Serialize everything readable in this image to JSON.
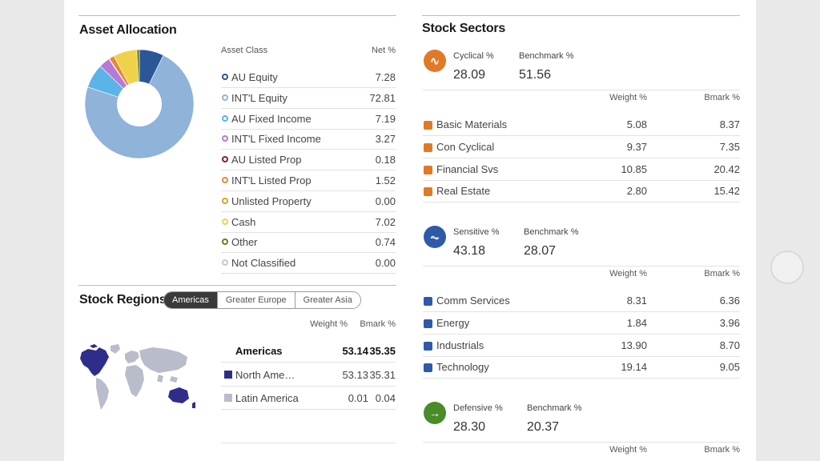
{
  "asset_allocation": {
    "title": "Asset Allocation",
    "col_class": "Asset Class",
    "col_net": "Net %",
    "rows": [
      {
        "label": "AU Equity",
        "value": "7.28",
        "color": "#2b5797"
      },
      {
        "label": "INT'L Equity",
        "value": "72.81",
        "color": "#8fb3d9"
      },
      {
        "label": "AU Fixed Income",
        "value": "7.19",
        "color": "#5ab4e8"
      },
      {
        "label": "INT'L Fixed Income",
        "value": "3.27",
        "color": "#b47ad6"
      },
      {
        "label": "AU Listed Prop",
        "value": "0.18",
        "color": "#8b1a3a"
      },
      {
        "label": "INT'L Listed Prop",
        "value": "1.52",
        "color": "#e08a3c"
      },
      {
        "label": "Unlisted Property",
        "value": "0.00",
        "color": "#d6a61e"
      },
      {
        "label": "Cash",
        "value": "7.02",
        "color": "#f0d24a"
      },
      {
        "label": "Other",
        "value": "0.74",
        "color": "#6a7a2a"
      },
      {
        "label": "Not Classified",
        "value": "0.00",
        "color": "#c8c8c8"
      }
    ]
  },
  "stock_regions": {
    "title": "Stock Regions",
    "tabs": [
      "Americas",
      "Greater Europe",
      "Greater Asia"
    ],
    "active_tab": "Americas",
    "col_weight": "Weight %",
    "col_bmark": "Bmark %",
    "rows": [
      {
        "label": "Americas",
        "weight": "53.14",
        "bmark": "35.35",
        "total": true
      },
      {
        "label": "North Ame…",
        "weight": "53.13",
        "bmark": "35.31",
        "color": "#2e2e8a"
      },
      {
        "label": "Latin America",
        "weight": "0.01",
        "bmark": "0.04",
        "color": "#b8bccb"
      }
    ]
  },
  "stock_sectors": {
    "title": "Stock Sectors",
    "col_weight": "Weight %",
    "col_bmark": "Bmark %",
    "groups": [
      {
        "name": "Cyclical %",
        "value": "28.09",
        "bench_label": "Benchmark %",
        "bench": "51.56",
        "color": "#e07a27",
        "icon": "cyclical-icon",
        "rows": [
          {
            "label": "Basic Materials",
            "weight": "5.08",
            "bmark": "8.37",
            "icon": "basic-materials-icon"
          },
          {
            "label": "Con Cyclical",
            "weight": "9.37",
            "bmark": "7.35",
            "icon": "consumer-cyclical-icon"
          },
          {
            "label": "Financial Svs",
            "weight": "10.85",
            "bmark": "20.42",
            "icon": "financial-services-icon"
          },
          {
            "label": "Real Estate",
            "weight": "2.80",
            "bmark": "15.42",
            "icon": "real-estate-icon"
          }
        ]
      },
      {
        "name": "Sensitive %",
        "value": "43.18",
        "bench_label": "Benchmark %",
        "bench": "28.07",
        "color": "#2f5aa8",
        "icon": "sensitive-icon",
        "rows": [
          {
            "label": "Comm Services",
            "weight": "8.31",
            "bmark": "6.36",
            "icon": "comm-services-icon"
          },
          {
            "label": "Energy",
            "weight": "1.84",
            "bmark": "3.96",
            "icon": "energy-icon"
          },
          {
            "label": "Industrials",
            "weight": "13.90",
            "bmark": "8.70",
            "icon": "industrials-icon"
          },
          {
            "label": "Technology",
            "weight": "19.14",
            "bmark": "9.05",
            "icon": "technology-icon"
          }
        ]
      },
      {
        "name": "Defensive %",
        "value": "28.30",
        "bench_label": "Benchmark %",
        "bench": "20.37",
        "color": "#4a8c2a",
        "icon": "defensive-icon",
        "rows": []
      }
    ]
  }
}
